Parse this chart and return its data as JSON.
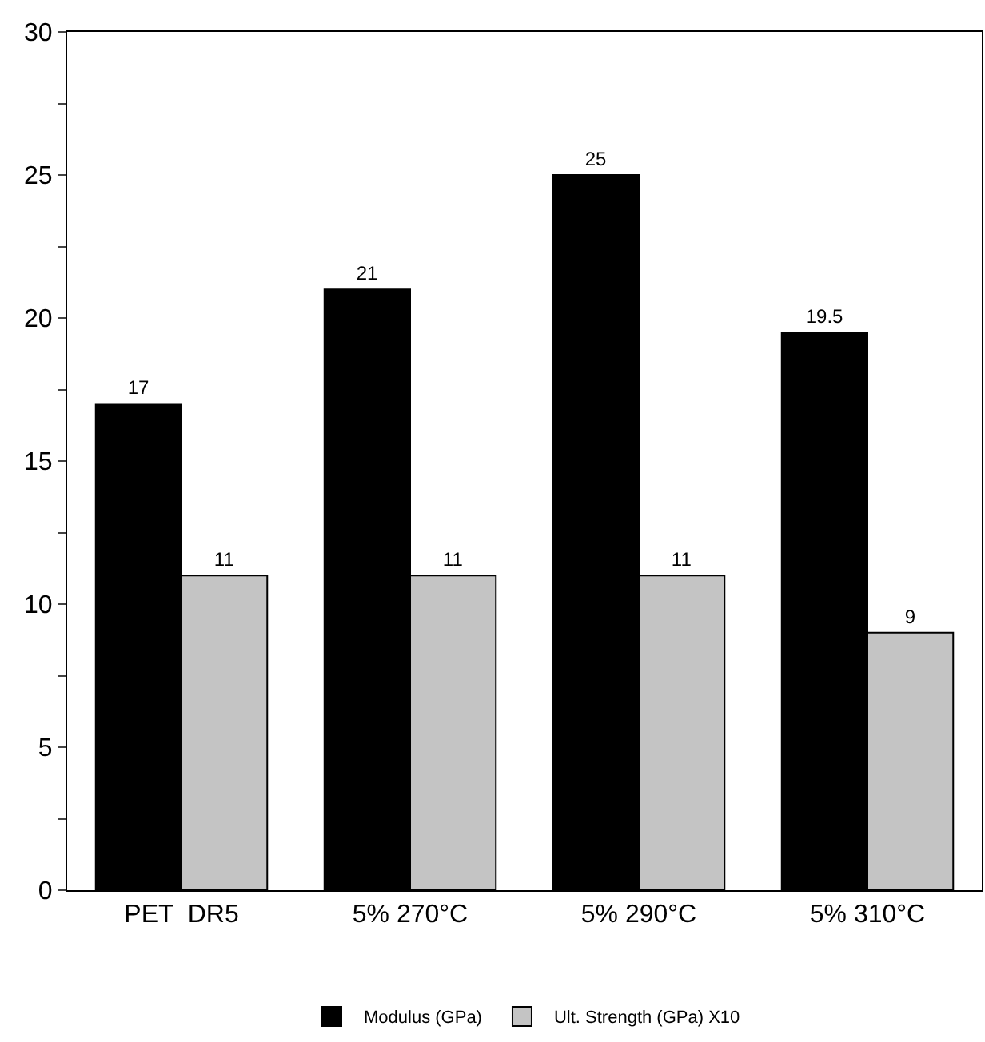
{
  "chart_data": {
    "type": "bar",
    "categories": [
      "PET  DR5",
      "5% 270°C",
      "5% 290°C",
      "5% 310°C"
    ],
    "series": [
      {
        "name": "Modulus (GPa)",
        "color": "#000000",
        "values": [
          17,
          21,
          25,
          19.5
        ]
      },
      {
        "name": "Ult. Strength (GPa) X10",
        "color": "#c4c4c4",
        "values": [
          11,
          11,
          11,
          9
        ]
      }
    ],
    "ylim": [
      0,
      30
    ],
    "yticks": [
      0,
      {
        "value": 2.5,
        "label": null
      },
      5,
      {
        "value": 7.5,
        "label": null
      },
      10,
      {
        "value": 12.5,
        "label": null
      },
      15,
      {
        "value": 17.5,
        "label": null
      },
      20,
      {
        "value": 22.5,
        "label": null
      },
      25,
      {
        "value": 27.5,
        "label": null
      },
      30
    ],
    "data_labels": true,
    "legend": "bottom"
  }
}
